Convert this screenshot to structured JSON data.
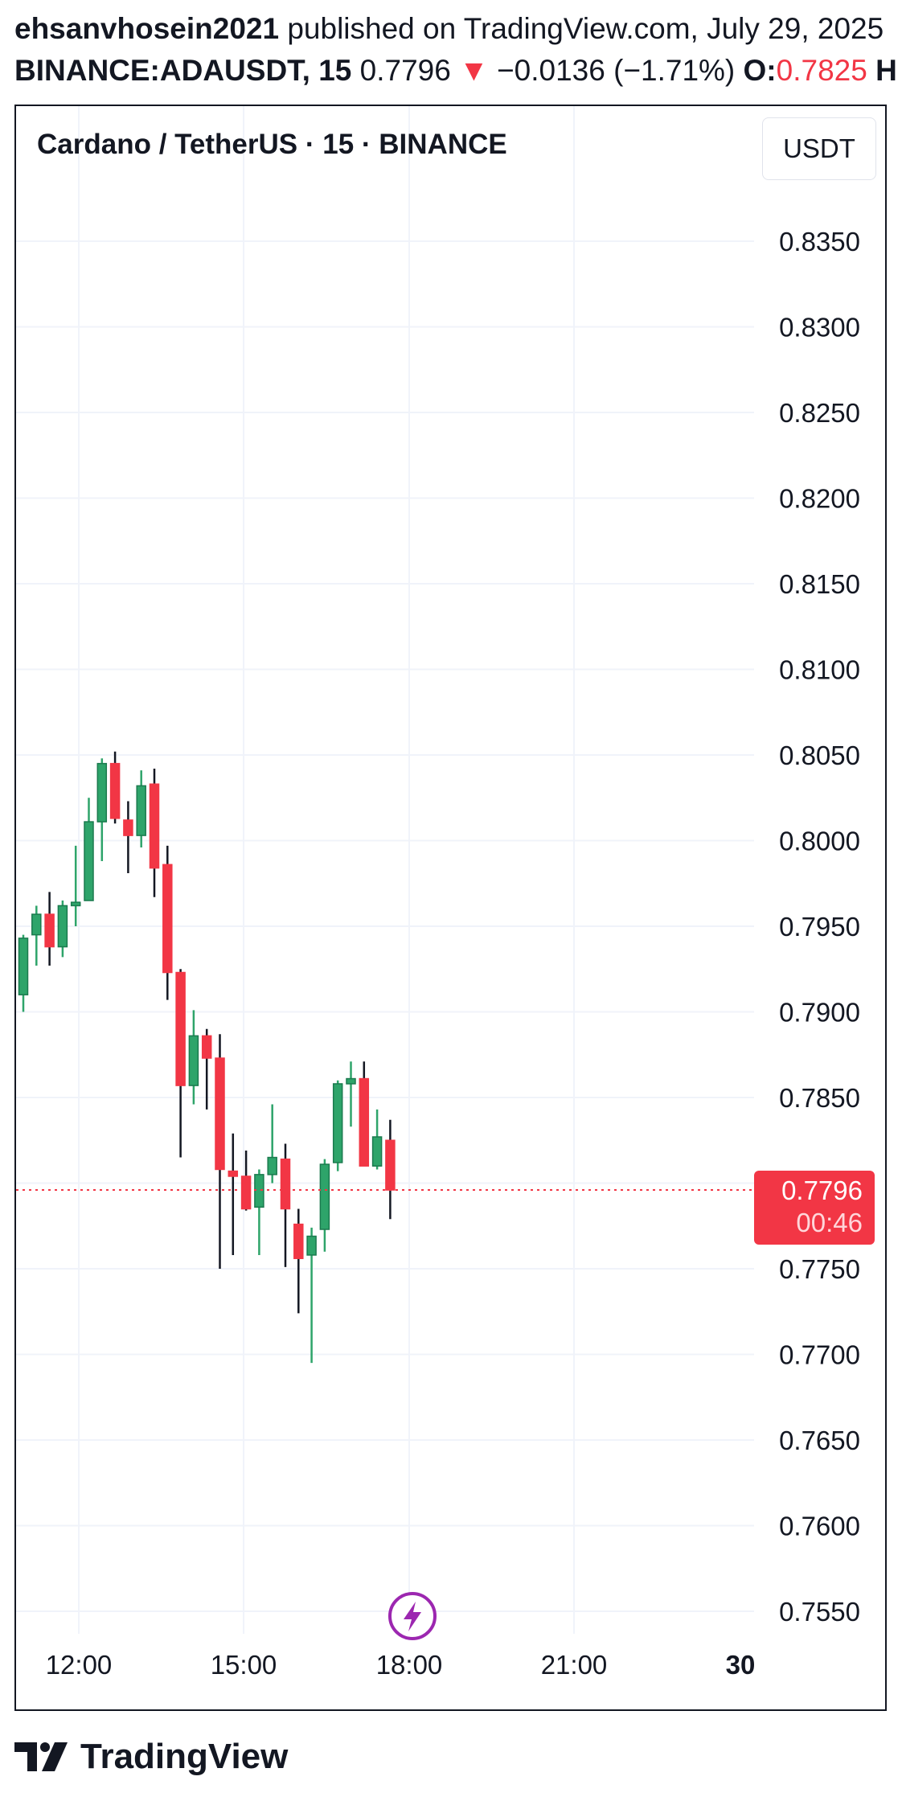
{
  "header": {
    "author": "ehsanvhosein2021",
    "published_text": "published on TradingView.com, July 29, 2025",
    "symbol": "BINANCE:ADAUSDT, 15",
    "last_price": "0.7796",
    "change_arrow": "▼",
    "change": "−0.0136 (−1.71%)",
    "open_label": "O:",
    "open_value": "0.7825",
    "cut_label": "H"
  },
  "chart": {
    "title": "Cardano / TetherUS · 15 · BINANCE",
    "currency_button": "USDT",
    "price_label": "0.7796",
    "countdown": "00:46",
    "flash_icon": "lightning-icon"
  },
  "footer": {
    "logo_text": "TradingView",
    "logo_icon": "tradingview-logo-icon"
  },
  "colors": {
    "up": "#26a69a",
    "up_fill": "#2ea46a",
    "down": "#f23645",
    "wick_dark": "#131722",
    "grid": "#f0f3fa",
    "accent_purple": "#9c27b0"
  },
  "chart_data": {
    "type": "candlestick",
    "y_ticks": [
      "0.8350",
      "0.8300",
      "0.8250",
      "0.8200",
      "0.8150",
      "0.8100",
      "0.8050",
      "0.8000",
      "0.7950",
      "0.7900",
      "0.7850",
      "0.7800",
      "0.7750",
      "0.7700",
      "0.7650",
      "0.7600",
      "0.7550"
    ],
    "x_ticks": [
      "12:00",
      "15:00",
      "18:00",
      "21:00",
      "30"
    ],
    "ylim": [
      0.753,
      0.8385
    ],
    "current_price": 0.7796,
    "candles": [
      {
        "o": 0.791,
        "h": 0.7945,
        "l": 0.79,
        "c": 0.7943
      },
      {
        "o": 0.7945,
        "h": 0.7962,
        "l": 0.7927,
        "c": 0.7957
      },
      {
        "o": 0.7957,
        "h": 0.797,
        "l": 0.7927,
        "c": 0.7938
      },
      {
        "o": 0.7938,
        "h": 0.7965,
        "l": 0.7932,
        "c": 0.7962
      },
      {
        "o": 0.7962,
        "h": 0.7997,
        "l": 0.795,
        "c": 0.7964
      },
      {
        "o": 0.7965,
        "h": 0.8025,
        "l": 0.7965,
        "c": 0.8011
      },
      {
        "o": 0.8011,
        "h": 0.8048,
        "l": 0.7988,
        "c": 0.8045
      },
      {
        "o": 0.8045,
        "h": 0.8052,
        "l": 0.801,
        "c": 0.8013
      },
      {
        "o": 0.8012,
        "h": 0.8023,
        "l": 0.7981,
        "c": 0.8003
      },
      {
        "o": 0.8003,
        "h": 0.8041,
        "l": 0.7996,
        "c": 0.8032
      },
      {
        "o": 0.8033,
        "h": 0.8042,
        "l": 0.7967,
        "c": 0.7984
      },
      {
        "o": 0.7986,
        "h": 0.7997,
        "l": 0.7907,
        "c": 0.7923
      },
      {
        "o": 0.7923,
        "h": 0.7925,
        "l": 0.7815,
        "c": 0.7857
      },
      {
        "o": 0.7857,
        "h": 0.7901,
        "l": 0.7846,
        "c": 0.7886
      },
      {
        "o": 0.7886,
        "h": 0.789,
        "l": 0.7843,
        "c": 0.7873
      },
      {
        "o": 0.7873,
        "h": 0.7887,
        "l": 0.775,
        "c": 0.7808
      },
      {
        "o": 0.7807,
        "h": 0.7829,
        "l": 0.7758,
        "c": 0.7804
      },
      {
        "o": 0.7804,
        "h": 0.7819,
        "l": 0.7784,
        "c": 0.7785
      },
      {
        "o": 0.7786,
        "h": 0.7808,
        "l": 0.7758,
        "c": 0.7805
      },
      {
        "o": 0.7805,
        "h": 0.7846,
        "l": 0.78,
        "c": 0.7815
      },
      {
        "o": 0.7814,
        "h": 0.7823,
        "l": 0.7751,
        "c": 0.7785
      },
      {
        "o": 0.7776,
        "h": 0.7785,
        "l": 0.7724,
        "c": 0.7756
      },
      {
        "o": 0.7758,
        "h": 0.7774,
        "l": 0.7695,
        "c": 0.7769
      },
      {
        "o": 0.7773,
        "h": 0.7814,
        "l": 0.776,
        "c": 0.7811
      },
      {
        "o": 0.7812,
        "h": 0.786,
        "l": 0.7807,
        "c": 0.7858
      },
      {
        "o": 0.7858,
        "h": 0.7871,
        "l": 0.7833,
        "c": 0.7861
      },
      {
        "o": 0.7861,
        "h": 0.7871,
        "l": 0.781,
        "c": 0.781
      },
      {
        "o": 0.781,
        "h": 0.7843,
        "l": 0.7808,
        "c": 0.7827
      },
      {
        "o": 0.7825,
        "h": 0.7837,
        "l": 0.7779,
        "c": 0.7796
      }
    ]
  }
}
